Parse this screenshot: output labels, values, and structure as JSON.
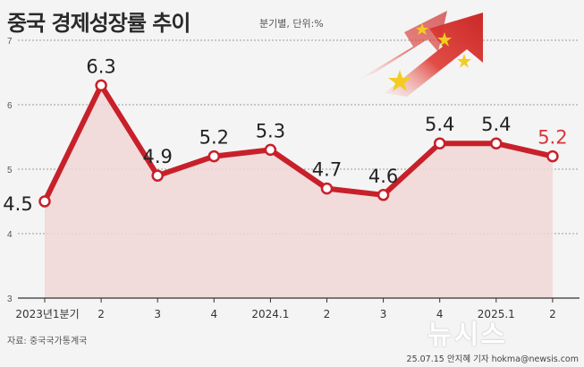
{
  "header": {
    "title": "중국 경제성장률 추이",
    "unit": "분기별, 단위:%"
  },
  "footer": {
    "source": "자료: 중국국가통계국",
    "credit": "25.07.15 안지혜 기자 hokma@newsis.com",
    "watermark": "뉴시스"
  },
  "colors": {
    "line": "#c8202a",
    "highlight": "#d9343a",
    "area": "#f0d6d6",
    "grid": "#9a9a9a"
  },
  "icons": {
    "decoration": "china-flag-rising-arrow-icon"
  },
  "chart_data": {
    "type": "area",
    "categories": [
      "2023년1분기",
      "2",
      "3",
      "4",
      "2024.1",
      "2",
      "3",
      "4",
      "2025.1",
      "2"
    ],
    "values": [
      4.5,
      6.3,
      4.9,
      5.2,
      5.3,
      4.7,
      4.6,
      5.4,
      5.4,
      5.2
    ],
    "data_labels": [
      "4.5",
      "6.3",
      "4.9",
      "5.2",
      "5.3",
      "4.7",
      "4.6",
      "5.4",
      "5.4",
      "5.2"
    ],
    "yticks": [
      "3",
      "4",
      "5",
      "6",
      "7"
    ],
    "ylim": [
      3,
      7
    ],
    "grid": true,
    "highlight_last": true
  }
}
